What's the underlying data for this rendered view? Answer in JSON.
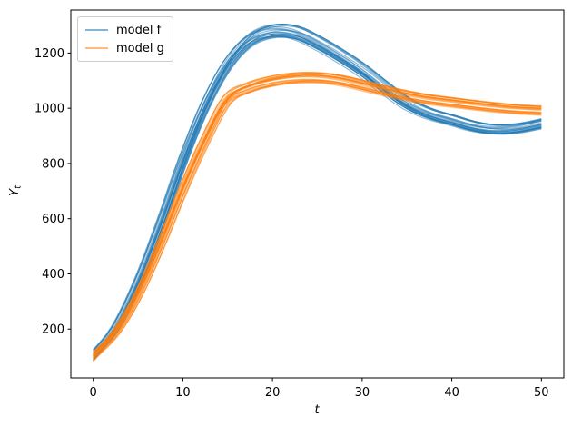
{
  "figure": {
    "xlabel": "t",
    "ylabel_main": "Y",
    "ylabel_sub": "t",
    "background": "#ffffff",
    "spine_color": "#000000"
  },
  "legend": {
    "position": "upper left",
    "items": [
      {
        "label": "model f",
        "color": "#1f77b4"
      },
      {
        "label": "model g",
        "color": "#ff7f0e"
      }
    ]
  },
  "chart_data": {
    "type": "line",
    "title": "",
    "xlabel": "t",
    "ylabel": "Y_t",
    "xlim": [
      -2.5,
      52.5
    ],
    "ylim": [
      23,
      1356
    ],
    "x_ticks": [
      0,
      10,
      20,
      30,
      40,
      50
    ],
    "y_ticks": [
      200,
      400,
      600,
      800,
      1000,
      1200
    ],
    "grid": false,
    "legend_position": "upper left",
    "series": [
      {
        "name": "model f",
        "color": "#1f77b4",
        "ensemble_lines": 25,
        "line_opacity": 0.5,
        "time_jitter": 0.55,
        "scale_jitter": 0.02,
        "t": [
          0,
          2.5,
          5,
          7.5,
          10,
          12.5,
          15,
          17.5,
          20,
          22.5,
          25,
          27.5,
          30,
          32.5,
          35,
          37.5,
          40,
          42.5,
          45,
          47.5,
          50
        ],
        "y": [
          105,
          205,
          370,
          580,
          810,
          1010,
          1160,
          1248,
          1278,
          1272,
          1235,
          1188,
          1135,
          1072,
          1015,
          978,
          955,
          932,
          922,
          928,
          944
        ]
      },
      {
        "name": "model g",
        "color": "#ff7f0e",
        "ensemble_lines": 25,
        "line_opacity": 0.5,
        "time_jitter": 0.55,
        "scale_jitter": 0.018,
        "t": [
          0,
          2.5,
          5,
          7.5,
          10,
          12.5,
          15,
          17.5,
          20,
          22.5,
          25,
          27.5,
          30,
          32.5,
          35,
          37.5,
          40,
          42.5,
          45,
          47.5,
          50
        ],
        "y": [
          100,
          185,
          320,
          500,
          700,
          880,
          1030,
          1075,
          1098,
          1110,
          1112,
          1103,
          1085,
          1065,
          1047,
          1033,
          1023,
          1013,
          1004,
          997,
          993
        ]
      }
    ]
  }
}
